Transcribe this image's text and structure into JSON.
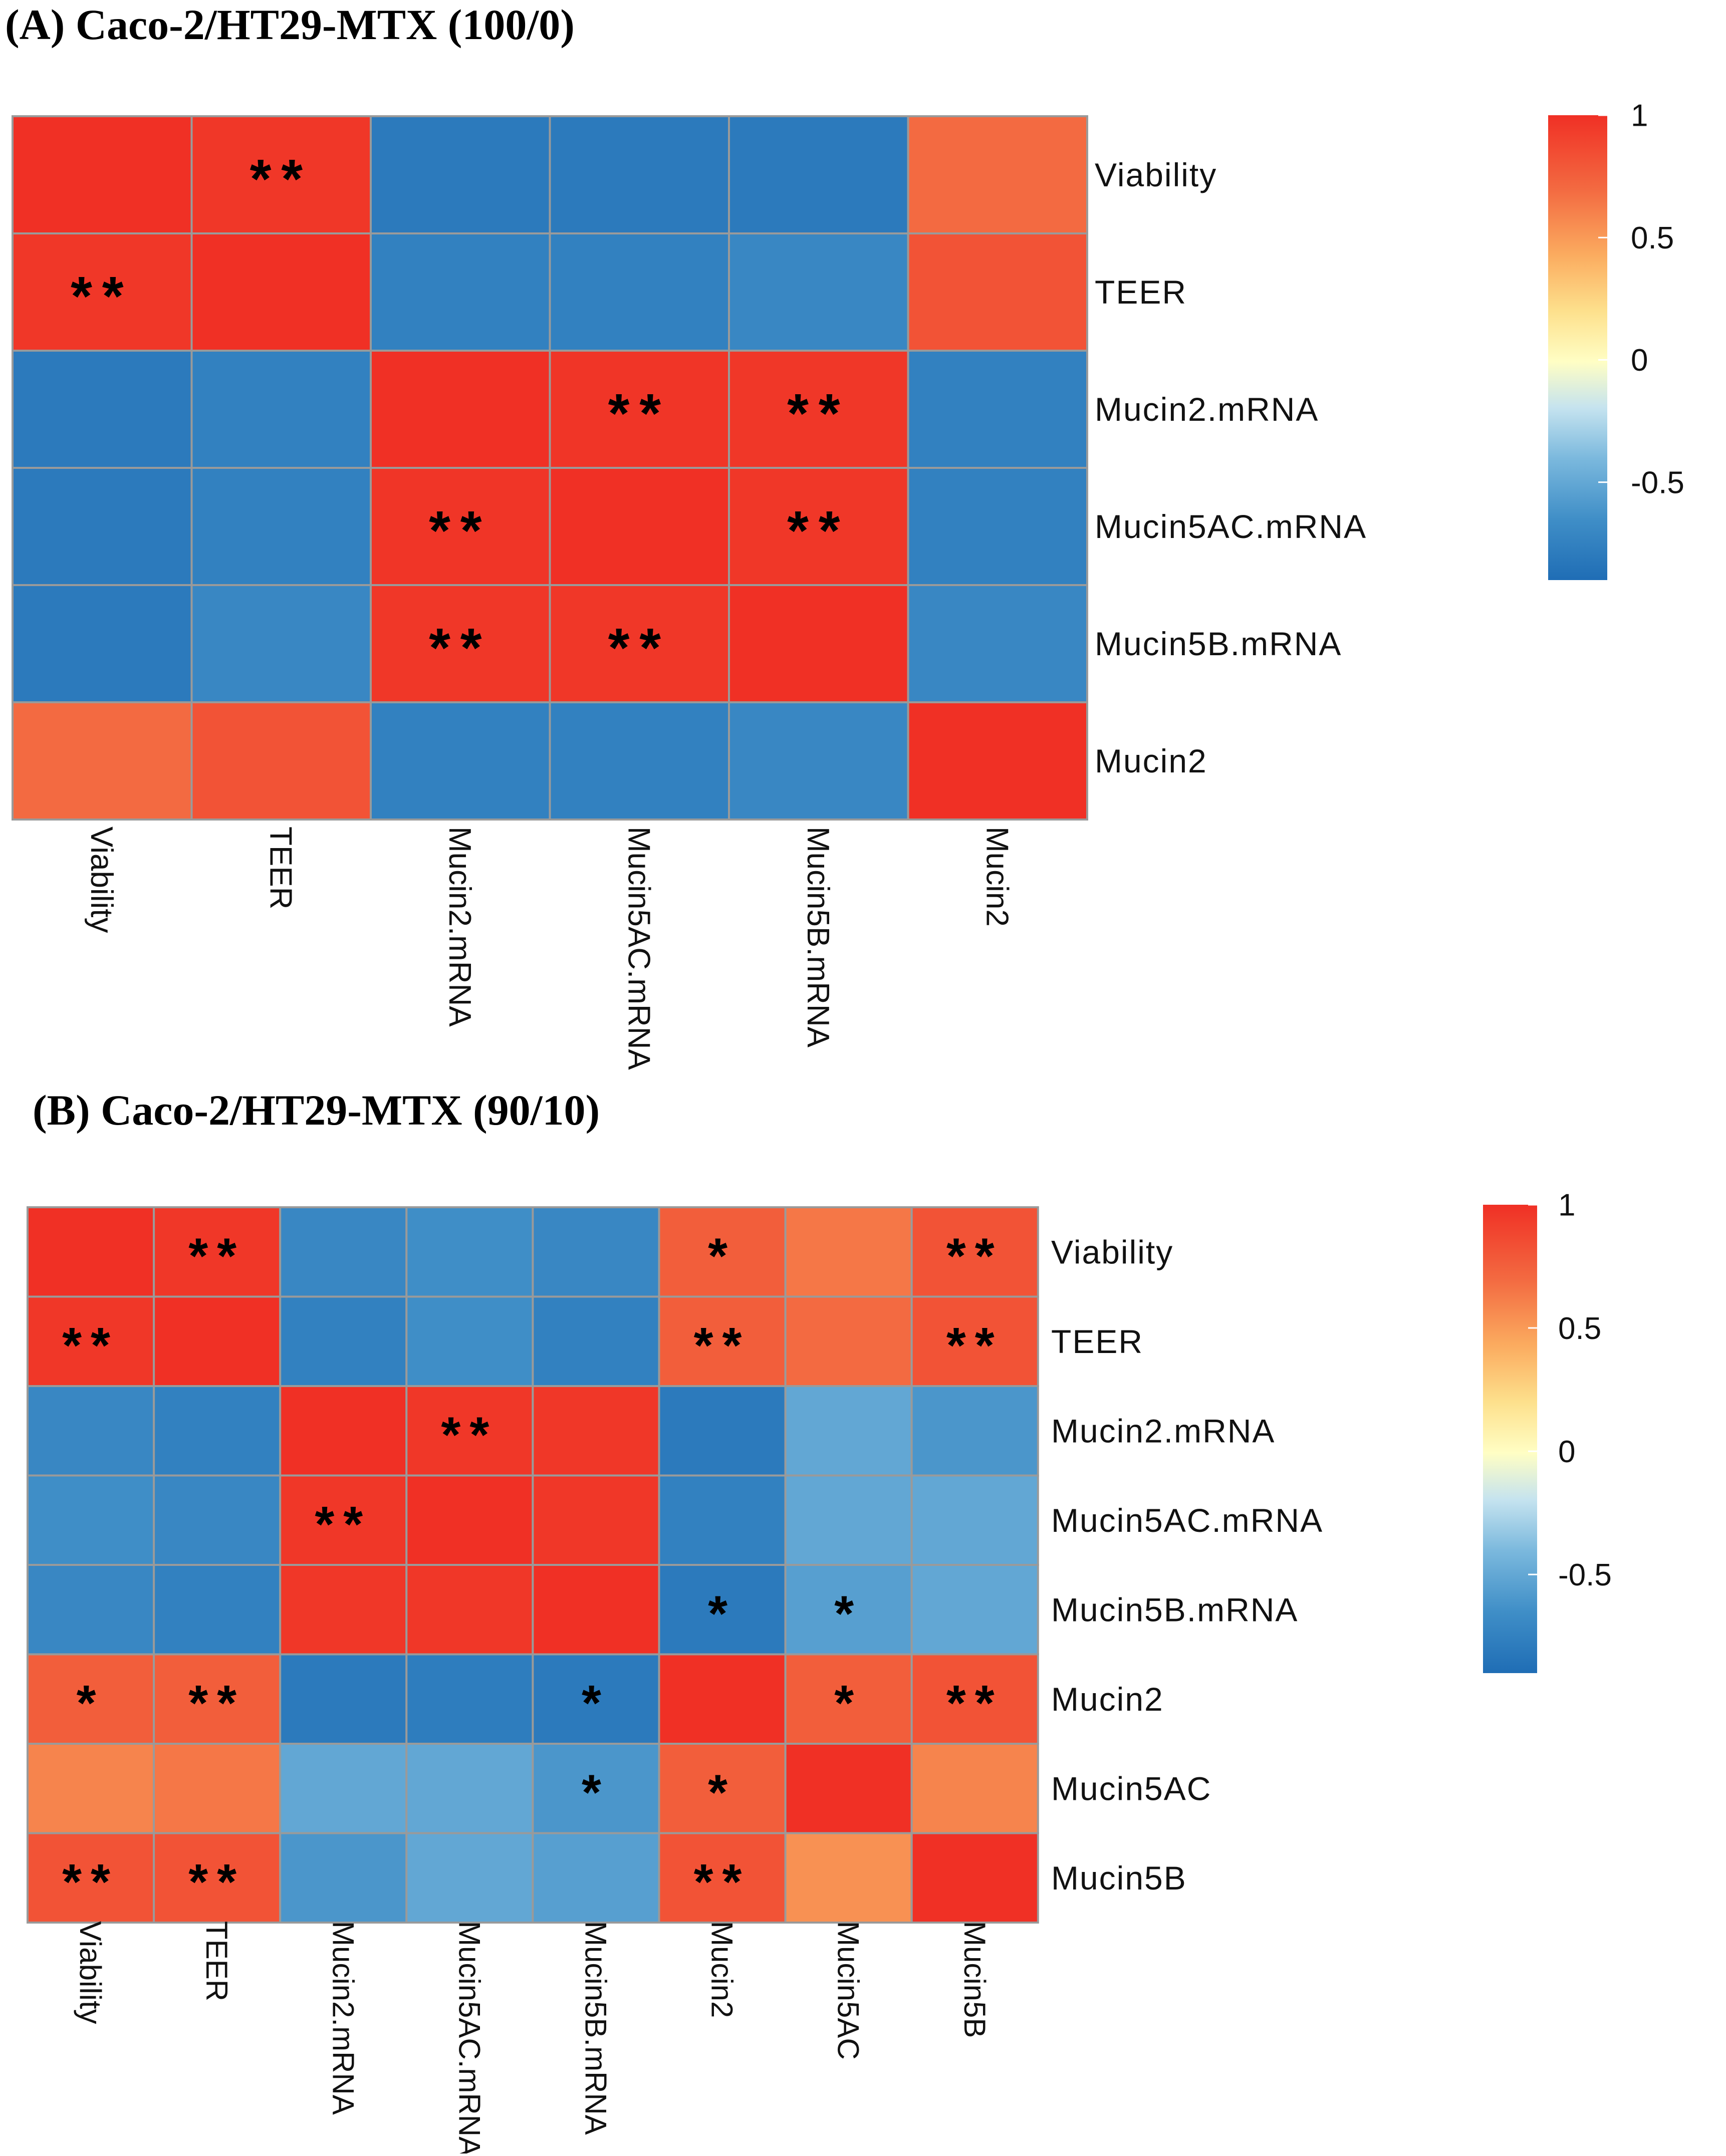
{
  "chart_data": [
    {
      "type": "heatmap",
      "title": "(A) Caco-2/HT29-MTX (100/0)",
      "row_labels": [
        "Viability",
        "TEER",
        "Mucin2.mRNA",
        "Mucin5AC.mRNA",
        "Mucin5B.mRNA",
        "Mucin2"
      ],
      "col_labels": [
        "Viability",
        "TEER",
        "Mucin2.mRNA",
        "Mucin5AC.mRNA",
        "Mucin5B.mRNA",
        "Mucin2"
      ],
      "values": [
        [
          1.0,
          0.97,
          -0.9,
          -0.9,
          -0.9,
          0.75
        ],
        [
          0.97,
          1.0,
          -0.85,
          -0.85,
          -0.8,
          0.85
        ],
        [
          -0.9,
          -0.85,
          1.0,
          0.98,
          0.97,
          -0.85
        ],
        [
          -0.9,
          -0.85,
          0.98,
          1.0,
          0.97,
          -0.85
        ],
        [
          -0.9,
          -0.8,
          0.97,
          0.97,
          1.0,
          -0.8
        ],
        [
          0.75,
          0.85,
          -0.85,
          -0.85,
          -0.8,
          1.0
        ]
      ],
      "significance": [
        [
          "",
          "**",
          "",
          "",
          "",
          ""
        ],
        [
          "**",
          "",
          "",
          "",
          "",
          ""
        ],
        [
          "",
          "",
          "",
          "**",
          "**",
          ""
        ],
        [
          "",
          "",
          "**",
          "",
          "**",
          ""
        ],
        [
          "",
          "",
          "**",
          "**",
          "",
          ""
        ],
        [
          "",
          "",
          "",
          "",
          "",
          ""
        ]
      ],
      "legend": {
        "ticks": [
          1,
          0.5,
          0,
          -0.5
        ],
        "tick_labels": [
          "1",
          "0.5",
          "0",
          "-0.5"
        ],
        "range": [
          -0.9,
          1
        ]
      }
    },
    {
      "type": "heatmap",
      "title": "(B) Caco-2/HT29-MTX (90/10)",
      "row_labels": [
        "Viability",
        "TEER",
        "Mucin2.mRNA",
        "Mucin5AC.mRNA",
        "Mucin5B.mRNA",
        "Mucin2",
        "Mucin5AC",
        "Mucin5B"
      ],
      "col_labels": [
        "Viability",
        "TEER",
        "Mucin2.mRNA",
        "Mucin5AC.mRNA",
        "Mucin5B.mRNA",
        "Mucin2",
        "Mucin5AC",
        "Mucin5B"
      ],
      "values": [
        [
          1.0,
          0.97,
          -0.8,
          -0.75,
          -0.8,
          0.8,
          0.7,
          0.85
        ],
        [
          0.97,
          1.0,
          -0.85,
          -0.75,
          -0.85,
          0.8,
          0.75,
          0.85
        ],
        [
          -0.8,
          -0.85,
          1.0,
          0.97,
          0.97,
          -0.9,
          -0.6,
          -0.7
        ],
        [
          -0.75,
          -0.8,
          0.97,
          1.0,
          0.97,
          -0.85,
          -0.6,
          -0.6
        ],
        [
          -0.8,
          -0.85,
          0.97,
          0.97,
          1.0,
          -0.9,
          -0.65,
          -0.6
        ],
        [
          0.8,
          0.8,
          -0.9,
          -0.88,
          -0.9,
          1.0,
          0.8,
          0.85
        ],
        [
          0.65,
          0.7,
          -0.6,
          -0.6,
          -0.7,
          0.8,
          1.0,
          0.65
        ],
        [
          0.85,
          0.85,
          -0.7,
          -0.6,
          -0.65,
          0.85,
          0.6,
          1.0
        ]
      ],
      "significance": [
        [
          "",
          "**",
          "",
          "",
          "",
          "*",
          "",
          "**"
        ],
        [
          "**",
          "",
          "",
          "",
          "",
          "**",
          "",
          "**"
        ],
        [
          "",
          "",
          "",
          "**",
          "",
          "",
          "",
          ""
        ],
        [
          "",
          "",
          "**",
          "",
          "",
          "",
          "",
          ""
        ],
        [
          "",
          "",
          "",
          "",
          "",
          "*",
          "*",
          ""
        ],
        [
          "*",
          "**",
          "",
          "",
          "*",
          "",
          "*",
          "**"
        ],
        [
          "",
          "",
          "",
          "",
          "*",
          "*",
          "",
          ""
        ],
        [
          "**",
          "**",
          "",
          "",
          "",
          "**",
          "",
          ""
        ]
      ],
      "legend": {
        "ticks": [
          1,
          0.5,
          0,
          -0.5
        ],
        "tick_labels": [
          "1",
          "0.5",
          "0",
          "-0.5"
        ],
        "range": [
          -0.9,
          1
        ]
      }
    }
  ]
}
